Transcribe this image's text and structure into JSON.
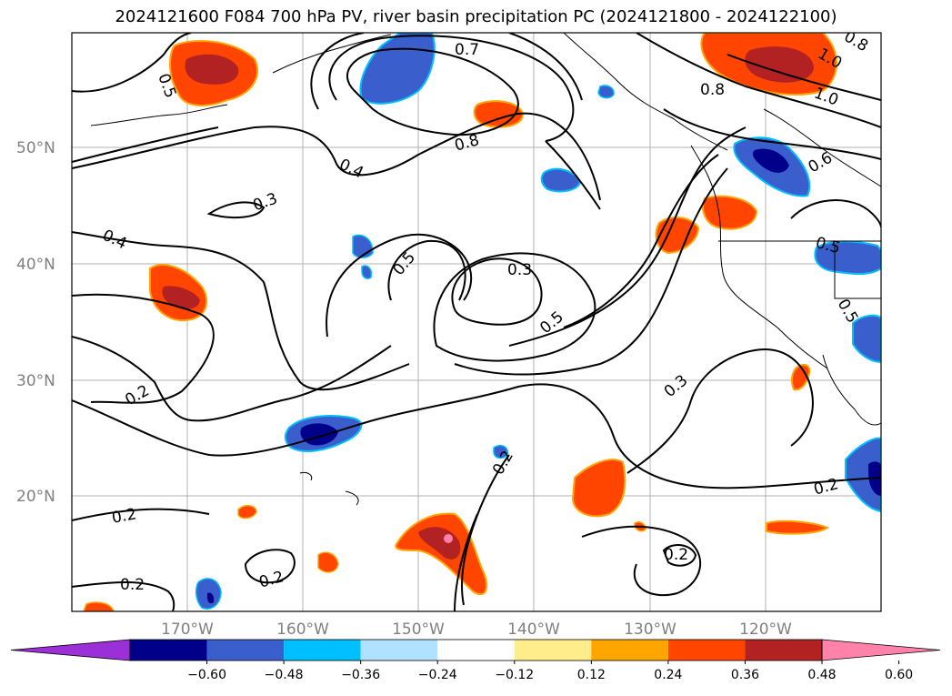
{
  "title": "2024121600 F084 700 hPa PV, river basin precipitation PC (2024121800 - 2024122100)",
  "map": {
    "lat_labels": [
      "50°N",
      "40°N",
      "30°N",
      "20°N"
    ],
    "lon_labels": [
      "170°W",
      "160°W",
      "150°W",
      "140°W",
      "130°W",
      "120°W"
    ]
  },
  "contour_labels": [
    "0.5",
    "0.7",
    "0.8",
    "0.8",
    "1.0",
    "1.0",
    "0.8",
    "0.4",
    "0.3",
    "0.4",
    "0.5",
    "0.3",
    "0.5",
    "0.6",
    "0.5",
    "0.5",
    "0.2",
    "0.3",
    "0.2",
    "0.2",
    "0.2",
    "0.2",
    "0.2",
    "0.2"
  ],
  "colorbar": {
    "colors": [
      "#9b30d9",
      "#00008b",
      "#3a5fcd",
      "#00bfff",
      "#b0e2ff",
      "#ffffff",
      "#ffec8b",
      "#ffa500",
      "#ff4500",
      "#b22222",
      "#ff82ab"
    ],
    "tick_labels": [
      "−0.60",
      "−0.48",
      "−0.36",
      "−0.24",
      "−0.12",
      "0.12",
      "0.24",
      "0.36",
      "0.48",
      "0.60"
    ]
  }
}
